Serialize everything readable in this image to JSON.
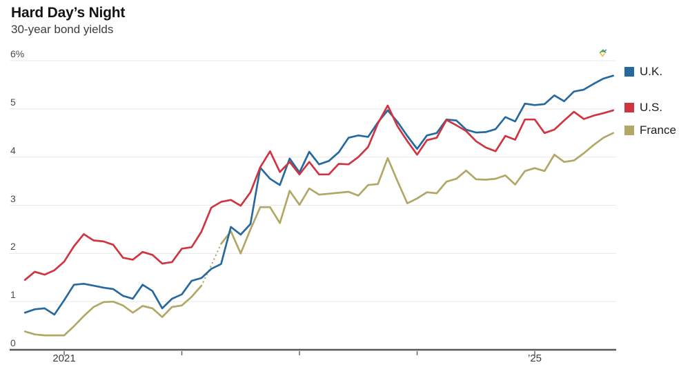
{
  "header": {
    "title": "Hard Day’s Night",
    "subtitle": "30-year bond yields"
  },
  "colors": {
    "uk_blue": "#26699f",
    "us_red": "#d03440",
    "france_olive": "#b1a767",
    "gridline": "#e8e8e8",
    "axis": "#56575b",
    "tick": "#666666",
    "logo_green": "#3a9e3d",
    "logo_yellow": "#f0b52c",
    "logo_blue": "#3b7fd4"
  },
  "chart_data": {
    "type": "line",
    "title": "Hard Day’s Night",
    "subtitle": "30-year bond yields",
    "x_unit": "month",
    "x_range": [
      "2020-09",
      "2025-09"
    ],
    "ylim": [
      0,
      6
    ],
    "grid": "horizontal",
    "legend_position": "right",
    "y_ticks": [
      {
        "value": 6,
        "label": "6%"
      },
      {
        "value": 5,
        "label": "5"
      },
      {
        "value": 4,
        "label": "4"
      },
      {
        "value": 3,
        "label": "3"
      },
      {
        "value": 2,
        "label": "2"
      },
      {
        "value": 1,
        "label": "1"
      },
      {
        "value": 0,
        "label": "0"
      }
    ],
    "x_ticks": [
      {
        "month_index": 4,
        "label": "2021"
      },
      {
        "month_index": 16,
        "label": ""
      },
      {
        "month_index": 28,
        "label": ""
      },
      {
        "month_index": 40,
        "label": ""
      },
      {
        "month_index": 52,
        "label": "’25"
      }
    ],
    "series": [
      {
        "name": "France",
        "color": "#b1a767",
        "dotted_segment": [
          18,
          20
        ],
        "values": [
          0.38,
          0.32,
          0.3,
          0.3,
          0.3,
          0.49,
          0.7,
          0.89,
          0.99,
          1.0,
          0.92,
          0.77,
          0.91,
          0.86,
          0.68,
          0.89,
          0.92,
          1.1,
          1.33,
          1.75,
          2.2,
          2.46,
          2.0,
          2.5,
          2.96,
          2.96,
          2.63,
          3.3,
          3.01,
          3.35,
          3.22,
          3.24,
          3.26,
          3.28,
          3.2,
          3.42,
          3.44,
          3.98,
          3.5,
          3.04,
          3.14,
          3.27,
          3.25,
          3.49,
          3.55,
          3.72,
          3.54,
          3.53,
          3.55,
          3.62,
          3.43,
          3.71,
          3.77,
          3.71,
          4.05,
          3.9,
          3.93,
          4.08,
          4.25,
          4.4,
          4.5
        ]
      },
      {
        "name": "U.K.",
        "color": "#26699f",
        "values": [
          0.77,
          0.84,
          0.86,
          0.73,
          1.03,
          1.35,
          1.37,
          1.33,
          1.29,
          1.26,
          1.12,
          1.06,
          1.35,
          1.22,
          0.86,
          1.06,
          1.15,
          1.43,
          1.49,
          1.68,
          1.78,
          2.55,
          2.39,
          2.61,
          3.78,
          3.55,
          3.42,
          3.97,
          3.68,
          4.11,
          3.85,
          3.92,
          4.1,
          4.4,
          4.45,
          4.42,
          4.72,
          4.97,
          4.73,
          4.44,
          4.17,
          4.45,
          4.5,
          4.78,
          4.76,
          4.57,
          4.51,
          4.52,
          4.58,
          4.83,
          4.74,
          5.11,
          5.08,
          5.1,
          5.28,
          5.16,
          5.36,
          5.4,
          5.52,
          5.63,
          5.69
        ]
      },
      {
        "name": "U.S.",
        "color": "#d03440",
        "values": [
          1.45,
          1.62,
          1.56,
          1.65,
          1.83,
          2.15,
          2.4,
          2.27,
          2.25,
          2.18,
          1.91,
          1.87,
          2.03,
          1.97,
          1.79,
          1.82,
          2.1,
          2.13,
          2.45,
          2.95,
          3.07,
          3.11,
          2.99,
          3.27,
          3.79,
          4.12,
          3.69,
          3.9,
          3.64,
          3.9,
          3.64,
          3.64,
          3.86,
          3.85,
          4.0,
          4.21,
          4.7,
          5.07,
          4.64,
          4.33,
          4.05,
          4.35,
          4.4,
          4.77,
          4.66,
          4.54,
          4.33,
          4.2,
          4.12,
          4.44,
          4.36,
          4.78,
          4.78,
          4.5,
          4.57,
          4.76,
          4.94,
          4.79,
          4.86,
          4.91,
          4.97
        ]
      }
    ]
  },
  "legend": {
    "items": [
      {
        "label": "U.K.",
        "color": "#26699f"
      },
      {
        "label": "U.S.",
        "color": "#d03440"
      },
      {
        "label": "France",
        "color": "#b1a767"
      }
    ]
  }
}
